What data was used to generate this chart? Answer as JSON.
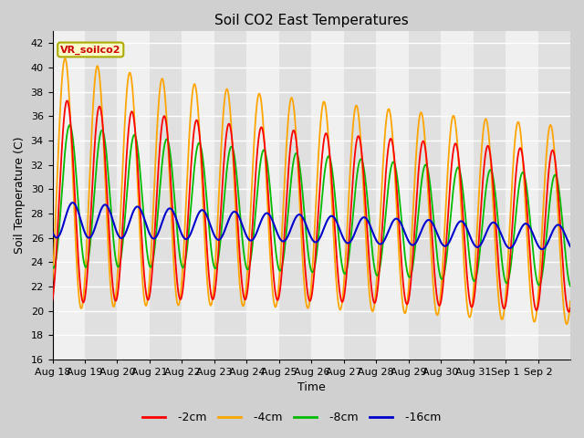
{
  "title": "Soil CO2 East Temperatures",
  "xlabel": "Time",
  "ylabel": "Soil Temperature (C)",
  "ylim": [
    16,
    43
  ],
  "yticks": [
    16,
    18,
    20,
    22,
    24,
    26,
    28,
    30,
    32,
    34,
    36,
    38,
    40,
    42
  ],
  "line_colors": {
    "-2cm": "#ff0000",
    "-4cm": "#ffa500",
    "-8cm": "#00bb00",
    "-16cm": "#0000cc"
  },
  "annotation_text": "VR_soilco2",
  "annotation_fgcolor": "#cc0000",
  "annotation_bgcolor": "#ffffcc",
  "annotation_edgecolor": "#aaaa00",
  "x_tick_labels": [
    "Aug 18",
    "Aug 19",
    "Aug 20",
    "Aug 21",
    "Aug 22",
    "Aug 23",
    "Aug 24",
    "Aug 25",
    "Aug 26",
    "Aug 27",
    "Aug 28",
    "Aug 29",
    "Aug 30",
    "Aug 31",
    "Sep 1",
    "Sep 2"
  ],
  "num_days": 16,
  "ppd": 240,
  "figsize": [
    6.4,
    4.8
  ],
  "dpi": 100,
  "fig_facecolor": "#d0d0d0",
  "ax_facecolor": "#f0f0f0",
  "alt_band_color": "#e0e0e0"
}
